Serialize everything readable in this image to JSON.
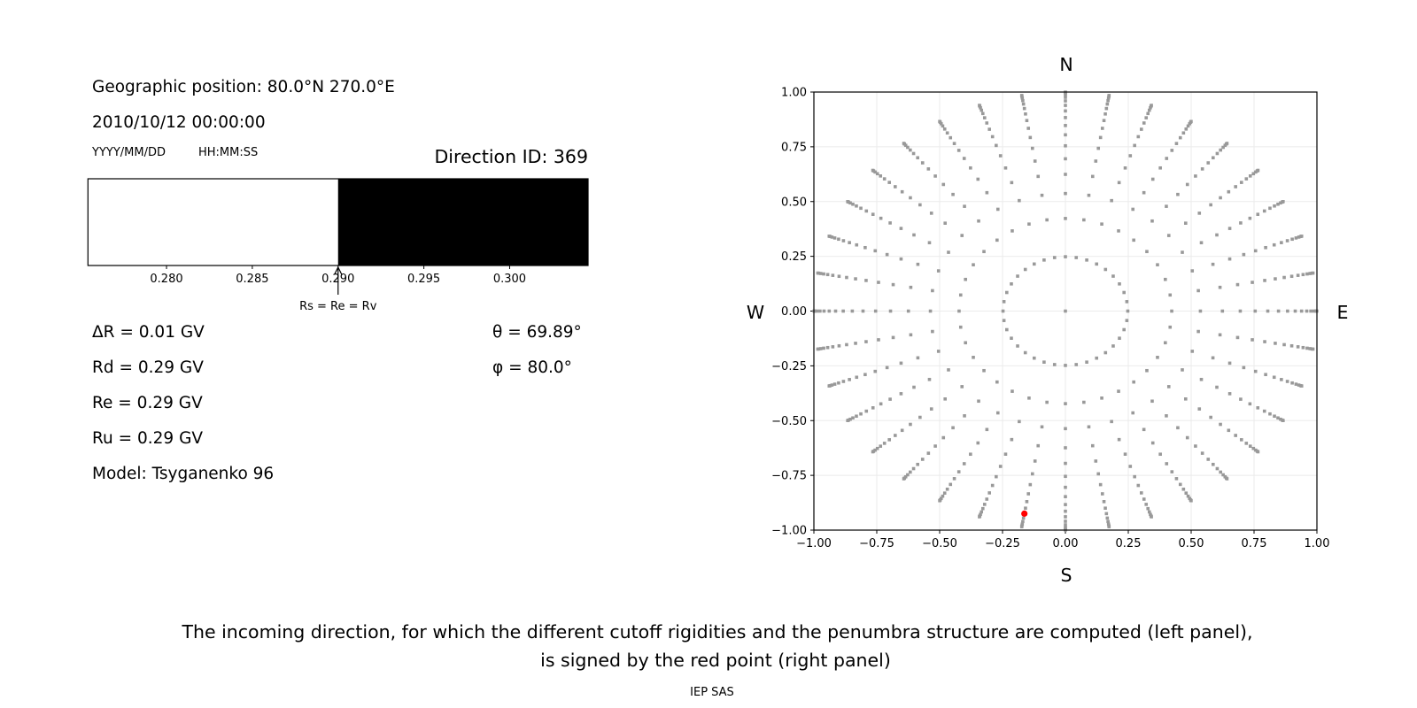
{
  "left_panel": {
    "geo_position": "Geographic position: 80.0°N 270.0°E",
    "datetime": "2010/10/12 00:00:00",
    "date_format": "YYYY/MM/DD",
    "time_format": "HH:MM:SS",
    "direction_id": "Direction ID: 369",
    "delta_r": "ΔR = 0.01 GV",
    "rd": "Rd = 0.29 GV",
    "re": "Re = 0.29 GV",
    "ru": "Ru = 0.29 GV",
    "model": "Model: Tsyganenko 96",
    "theta": "θ = 69.89°",
    "phi": "φ = 80.0°"
  },
  "chart_data": [
    {
      "type": "bar",
      "xlim": [
        0.27542,
        0.30457
      ],
      "xticks": [
        "0.280",
        "0.285",
        "0.290",
        "0.295",
        "0.300"
      ],
      "xtick_values": [
        0.28,
        0.285,
        0.29,
        0.295,
        0.3
      ],
      "segments": [
        {
          "start": 0.27542,
          "end": 0.29,
          "fill": "#ffffff"
        },
        {
          "start": 0.29,
          "end": 0.30457,
          "fill": "#000000"
        }
      ],
      "annotation": {
        "text": "Rs = Re = Rv",
        "x": 0.29
      }
    },
    {
      "type": "scatter",
      "xlim": [
        -1.0,
        1.0
      ],
      "ylim": [
        -1.0,
        1.0
      ],
      "xticks": [
        "−1.00",
        "−0.75",
        "−0.50",
        "−0.25",
        "0.00",
        "0.25",
        "0.50",
        "0.75",
        "1.00"
      ],
      "yticks": [
        "−1.00",
        "−0.75",
        "−0.50",
        "−0.25",
        "0.00",
        "0.25",
        "0.50",
        "0.75",
        "1.00"
      ],
      "tick_values": [
        -1.0,
        -0.75,
        -0.5,
        -0.25,
        0.0,
        0.25,
        0.5,
        0.75,
        1.0
      ],
      "grid": true,
      "cardinals": {
        "north": "N",
        "south": "S",
        "west": "W",
        "east": "E"
      },
      "point_color": "#999999",
      "grid_points": {
        "center": [
          0,
          0
        ],
        "zenith_cos": [
          0.96875,
          0.90625,
          0.84375,
          0.78125,
          0.71875,
          0.65625,
          0.59375,
          0.53125,
          0.46875,
          0.40625,
          0.34375,
          0.28125,
          0.21875,
          0.15625,
          0.09375,
          0.03125
        ],
        "azimuth_deg": [
          0,
          10,
          20,
          30,
          40,
          50,
          60,
          70,
          80,
          90,
          100,
          110,
          120,
          130,
          140,
          150,
          160,
          170,
          180,
          190,
          200,
          210,
          220,
          230,
          240,
          250,
          260,
          270,
          280,
          290,
          300,
          310,
          320,
          330,
          340,
          350
        ]
      },
      "highlight": {
        "theta_deg": 69.89,
        "phi_deg": 80.0,
        "color": "#ff0000"
      }
    }
  ],
  "caption": {
    "line1": "The incoming direction, for which the different cutoff rigidities and the penumbra structure are computed (left panel),",
    "line2": "is signed by the red point (right panel)"
  },
  "credit": "IEP SAS"
}
